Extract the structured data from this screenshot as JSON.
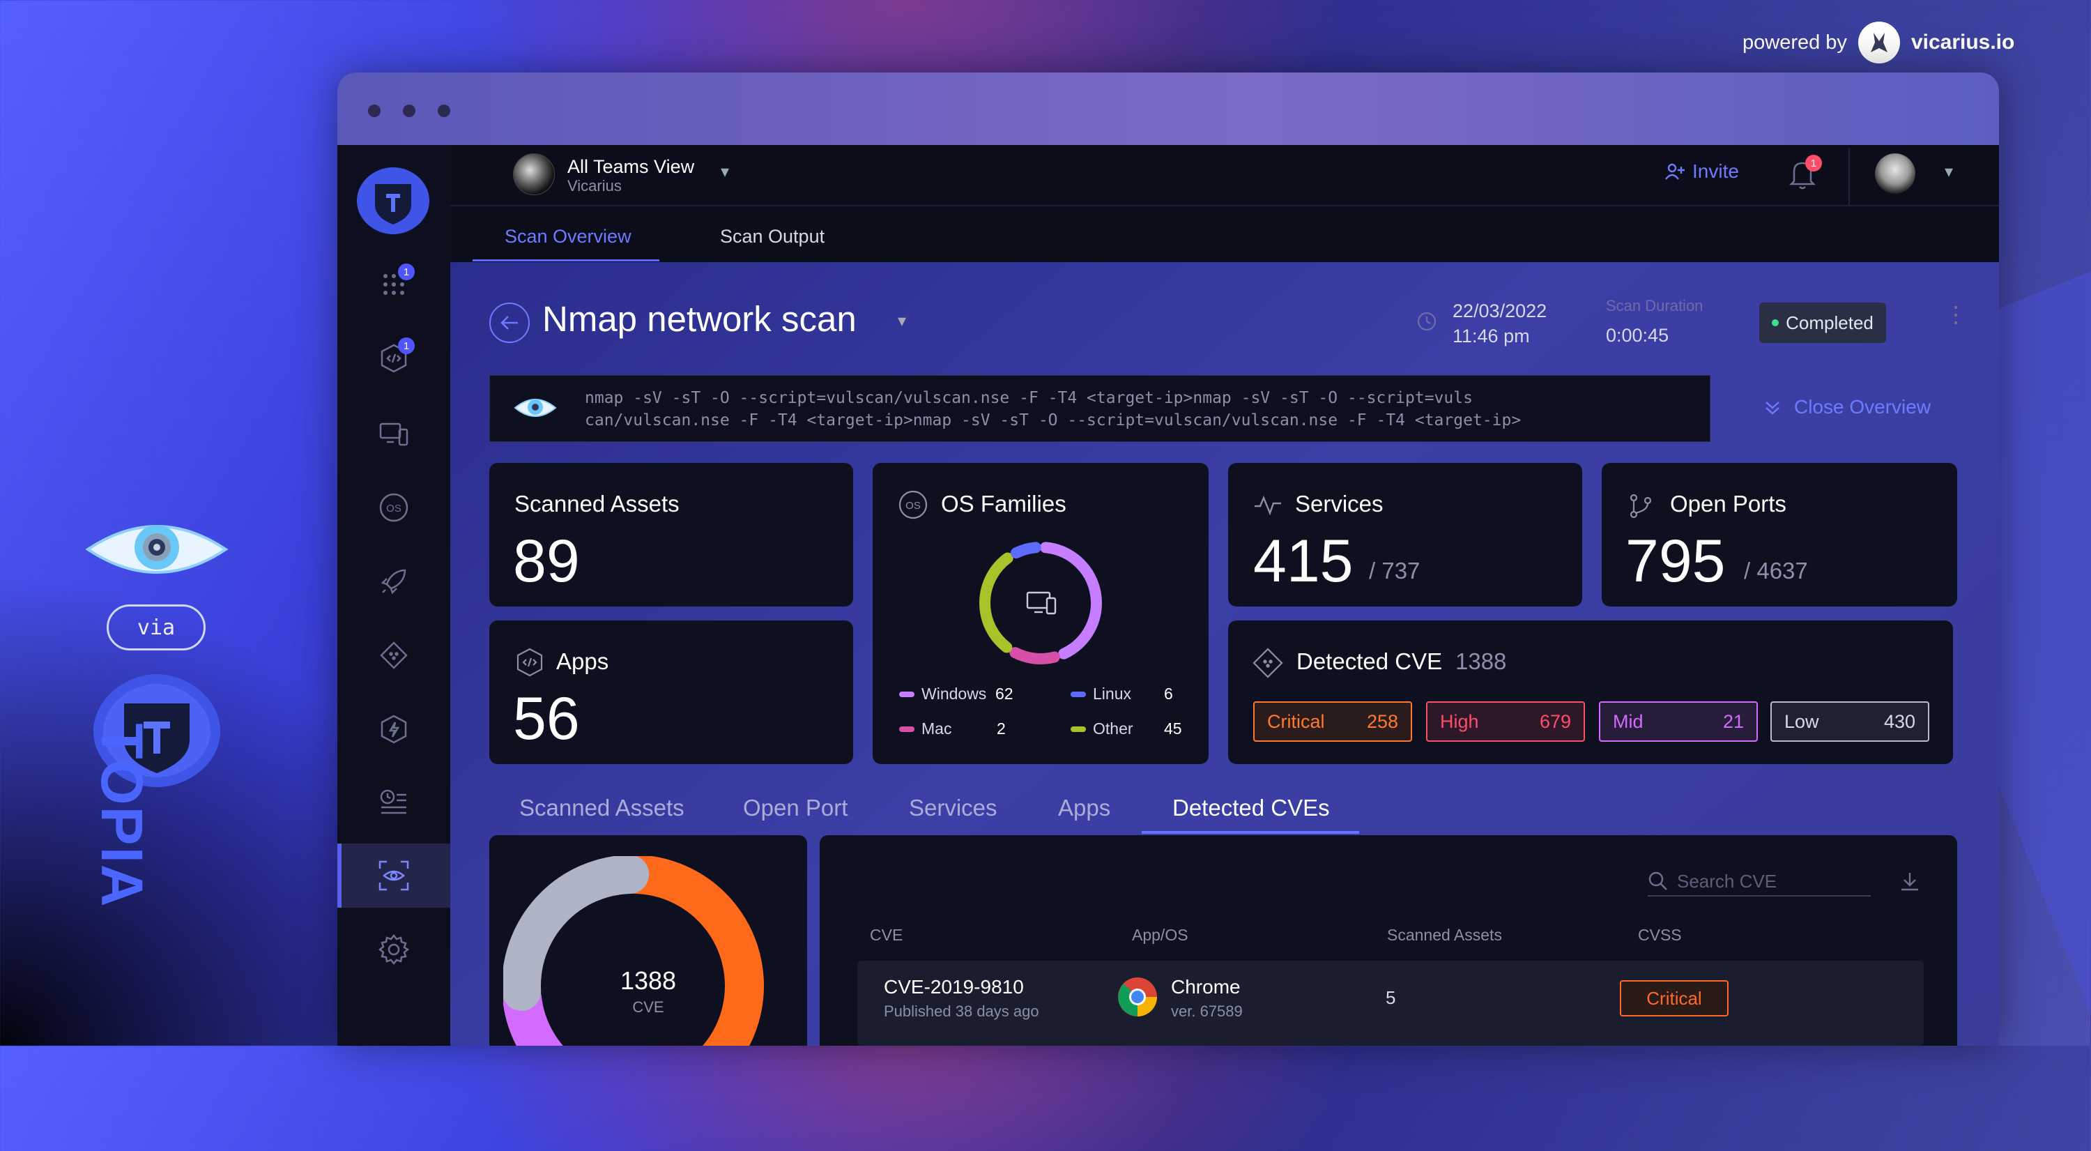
{
  "branding": {
    "powered_by": "powered by",
    "company": "vicarius.io",
    "via": "via",
    "product": "TOPIA"
  },
  "header": {
    "team_name": "All Teams View",
    "team_org": "Vicarius",
    "invite_label": "Invite",
    "notification_count": "1"
  },
  "sidebar": {
    "badges": [
      "1",
      "1"
    ]
  },
  "tabs": [
    {
      "label": "Scan Overview",
      "active": true
    },
    {
      "label": "Scan Output",
      "active": false
    }
  ],
  "scan": {
    "title": "Nmap network scan",
    "date": "22/03/2022",
    "time": "11:46 pm",
    "duration_label": "Scan Duration",
    "duration": "0:00:45",
    "status": "Completed",
    "command_line1": "nmap -sV -sT -O --script=vulscan/vulscan.nse -F -T4 <target-ip>nmap -sV -sT -O --script=vuls",
    "command_line2": "can/vulscan.nse -F -T4 <target-ip>nmap -sV -sT -O --script=vulscan/vulscan.nse -F -T4 <target-ip>",
    "close_overview": "Close Overview"
  },
  "cards": {
    "scanned_assets": {
      "title": "Scanned Assets",
      "value": "89"
    },
    "apps": {
      "title": "Apps",
      "value": "56"
    },
    "os_families": {
      "title": "OS Families",
      "items": [
        {
          "label": "Windows",
          "value": "62",
          "color": "#c77dff"
        },
        {
          "label": "Linux",
          "value": "6",
          "color": "#5d6bff"
        },
        {
          "label": "Mac",
          "value": "2",
          "color": "#d84fa8"
        },
        {
          "label": "Other",
          "value": "45",
          "color": "#a8c22a"
        }
      ]
    },
    "services": {
      "title": "Services",
      "value": "415",
      "total": "/ 737"
    },
    "open_ports": {
      "title": "Open Ports",
      "value": "795",
      "total": "/ 4637"
    },
    "detected_cve": {
      "title": "Detected CVE",
      "total": "1388",
      "severities": [
        {
          "label": "Critical",
          "value": "258",
          "color": "#ff7a2a"
        },
        {
          "label": "High",
          "value": "679",
          "color": "#ff4d6a"
        },
        {
          "label": "Mid",
          "value": "21",
          "color": "#d46bff"
        },
        {
          "label": "Low",
          "value": "430",
          "color": "#b9bccb"
        }
      ]
    }
  },
  "subtabs": [
    {
      "label": "Scanned Assets",
      "active": false
    },
    {
      "label": "Open Port",
      "active": false
    },
    {
      "label": "Services",
      "active": false
    },
    {
      "label": "Apps",
      "active": false
    },
    {
      "label": "Detected CVEs",
      "active": true
    }
  ],
  "cve_donut": {
    "value": "1388",
    "label": "CVE"
  },
  "table": {
    "search_placeholder": "Search CVE",
    "columns": [
      "CVE",
      "App/OS",
      "Scanned Assets",
      "CVSS"
    ],
    "rows": [
      {
        "cve": "CVE-2019-9810",
        "published": "Published 38 days ago",
        "app": "Chrome",
        "version": "ver. 67589",
        "assets": "5",
        "cvss": "Critical"
      }
    ]
  }
}
